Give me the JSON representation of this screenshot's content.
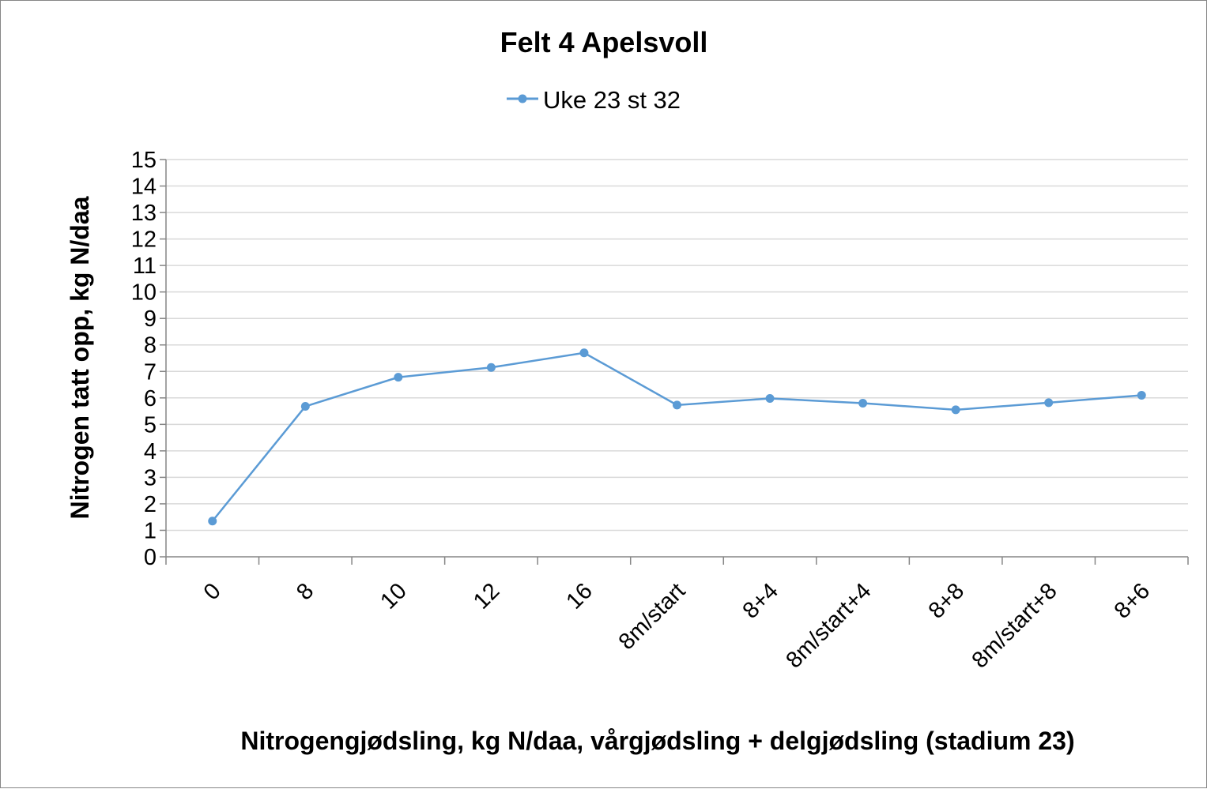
{
  "chart_data": {
    "type": "line",
    "title": "Felt 4 Apelsvoll",
    "xlabel": "Nitrogengjødsling, kg N/daa, vårgjødsling + delgjødsling (stadium 23)",
    "ylabel": "Nitrogen tatt opp, kg N/daa",
    "categories": [
      "0",
      "8",
      "10",
      "12",
      "16",
      "8m/start",
      "8+4",
      "8m/start+4",
      "8+8",
      "8m/start+8",
      "8+6"
    ],
    "series": [
      {
        "name": "Uke 23 st 32",
        "values": [
          1.35,
          5.68,
          6.78,
          7.15,
          7.7,
          5.73,
          5.98,
          5.8,
          5.55,
          5.82,
          6.1
        ],
        "color": "#5b9bd5"
      }
    ],
    "ylim": [
      0,
      15
    ],
    "yticks": [
      "0",
      "1",
      "2",
      "3",
      "4",
      "5",
      "6",
      "7",
      "8",
      "9",
      "10",
      "11",
      "12",
      "13",
      "14",
      "15"
    ],
    "grid": true,
    "gridColor": "#d9d9d9",
    "legend": "top"
  }
}
